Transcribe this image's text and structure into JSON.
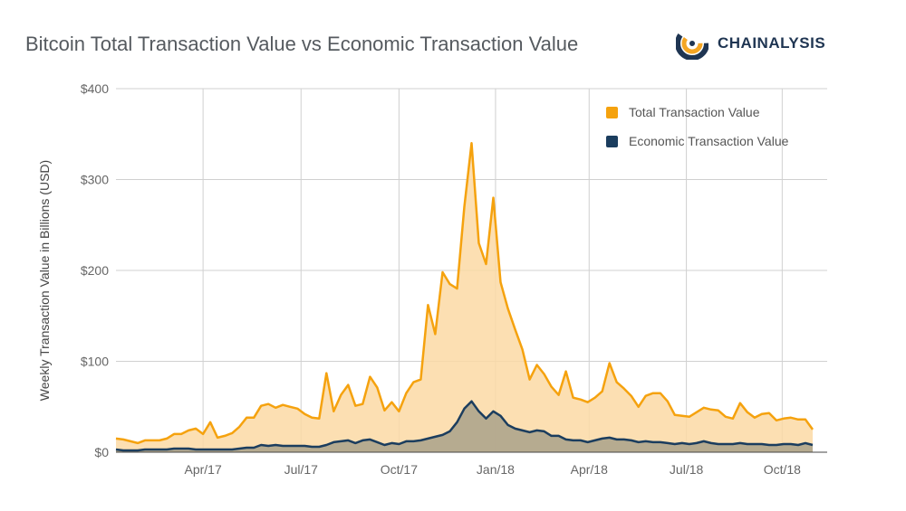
{
  "title": "Bitcoin Total Transaction Value vs Economic Transaction Value",
  "brand": {
    "name": "CHAINALYSIS",
    "logo_icon": "chainalysis-logo-icon",
    "colors": {
      "navy": "#1f3552",
      "orange": "#f5a623"
    }
  },
  "chart_data": {
    "type": "area",
    "title": "Bitcoin Total Transaction Value vs Economic Transaction Value",
    "xlabel": "",
    "ylabel": "Weekly Transaction Value in Billions (USD)",
    "ylim": [
      0,
      400
    ],
    "yticks": [
      0,
      100,
      200,
      300,
      400
    ],
    "ytick_labels": [
      "$0",
      "$100",
      "$200",
      "$300",
      "$400"
    ],
    "x_start_week": 0,
    "x_end_week": 98,
    "xticks": [
      {
        "label": "Apr/17",
        "week": 12
      },
      {
        "label": "Jul/17",
        "week": 25.5
      },
      {
        "label": "Oct/17",
        "week": 39
      },
      {
        "label": "Jan/18",
        "week": 52.3
      },
      {
        "label": "Apr/18",
        "week": 65.2
      },
      {
        "label": "Jul/18",
        "week": 78.6
      },
      {
        "label": "Oct/18",
        "week": 91.8
      }
    ],
    "grid": true,
    "legend_position": "top-right",
    "series": [
      {
        "name": "Total Transaction Value",
        "color": "#f5a20e",
        "fill": "#fcd9a4",
        "values": [
          15,
          14,
          12,
          10,
          13,
          13,
          13,
          15,
          20,
          20,
          24,
          26,
          20,
          33,
          16,
          18,
          21,
          28,
          38,
          38,
          51,
          53,
          49,
          52,
          50,
          48,
          42,
          38,
          37,
          87,
          45,
          63,
          74,
          51,
          53,
          83,
          71,
          46,
          55,
          45,
          65,
          77,
          80,
          162,
          130,
          198,
          185,
          180,
          270,
          340,
          230,
          207,
          280,
          187,
          158,
          135,
          113,
          80,
          96,
          86,
          72,
          63,
          89,
          60,
          58,
          55,
          60,
          67,
          98,
          77,
          70,
          62,
          50,
          62,
          65,
          65,
          56,
          41,
          40,
          39,
          44,
          49,
          47,
          46,
          39,
          37,
          54,
          44,
          38,
          42,
          43,
          35,
          37,
          38,
          36,
          36,
          25
        ],
        "point_every_weeks": 1
      },
      {
        "name": "Economic Transaction Value",
        "color": "#1b3d5e",
        "fill": "#b2a88e",
        "values": [
          3,
          2,
          2,
          2,
          3,
          3,
          3,
          3,
          4,
          4,
          4,
          3,
          3,
          3,
          3,
          3,
          3,
          4,
          5,
          5,
          8,
          7,
          8,
          7,
          7,
          7,
          7,
          6,
          6,
          8,
          11,
          12,
          13,
          10,
          13,
          14,
          11,
          8,
          10,
          9,
          12,
          12,
          13,
          15,
          17,
          19,
          23,
          33,
          48,
          56,
          45,
          37,
          45,
          40,
          30,
          26,
          24,
          22,
          24,
          23,
          18,
          18,
          14,
          13,
          13,
          11,
          13,
          15,
          16,
          14,
          14,
          13,
          11,
          12,
          11,
          11,
          10,
          9,
          10,
          9,
          10,
          12,
          10,
          9,
          9,
          9,
          10,
          9,
          9,
          9,
          8,
          8,
          9,
          9,
          8,
          10,
          8
        ],
        "point_every_weeks": 1
      }
    ]
  }
}
